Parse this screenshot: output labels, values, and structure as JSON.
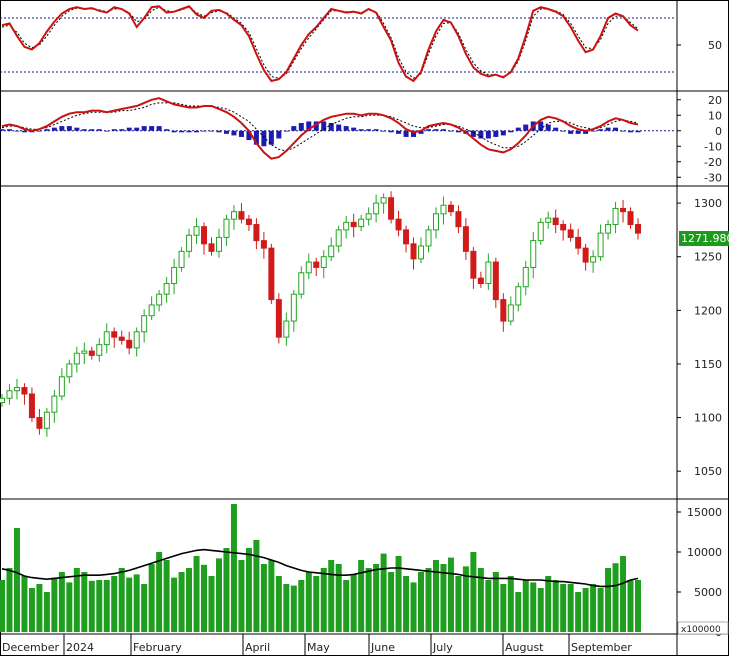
{
  "chart_data": [
    {
      "panel": "stochastic",
      "type": "line",
      "ylim": [
        0,
        100
      ],
      "yticks": [
        50
      ],
      "reference_lines": [
        80,
        20
      ],
      "series": [
        {
          "style": "solid-red",
          "values": [
            72,
            74,
            60,
            48,
            45,
            52,
            65,
            76,
            85,
            90,
            92,
            90,
            91,
            88,
            86,
            92,
            90,
            85,
            70,
            80,
            92,
            93,
            86,
            87,
            90,
            93,
            84,
            80,
            88,
            89,
            85,
            78,
            72,
            60,
            40,
            22,
            10,
            12,
            20,
            35,
            50,
            62,
            70,
            80,
            90,
            88,
            86,
            87,
            85,
            90,
            86,
            70,
            55,
            30,
            15,
            10,
            20,
            45,
            65,
            78,
            75,
            60,
            40,
            25,
            18,
            15,
            17,
            14,
            20,
            35,
            60,
            88,
            92,
            90,
            87,
            82,
            70,
            55,
            42,
            45,
            60,
            80,
            85,
            82,
            72,
            66
          ]
        },
        {
          "style": "dashed-black",
          "values": [
            70,
            72,
            64,
            52,
            47,
            50,
            60,
            72,
            82,
            88,
            91,
            90,
            90,
            89,
            87,
            90,
            90,
            86,
            76,
            78,
            88,
            92,
            88,
            87,
            89,
            92,
            86,
            82,
            86,
            88,
            86,
            80,
            74,
            64,
            46,
            28,
            15,
            13,
            18,
            32,
            46,
            58,
            68,
            78,
            88,
            88,
            87,
            87,
            86,
            89,
            87,
            74,
            58,
            36,
            20,
            13,
            18,
            40,
            60,
            74,
            75,
            63,
            45,
            30,
            21,
            17,
            17,
            15,
            19,
            32,
            55,
            82,
            90,
            90,
            88,
            84,
            74,
            60,
            47,
            46,
            56,
            74,
            82,
            82,
            75,
            68
          ]
        }
      ]
    },
    {
      "panel": "macd",
      "type": "line",
      "ylim": [
        -35,
        25
      ],
      "yticks": [
        20,
        10,
        0,
        -10,
        -20,
        -30
      ],
      "series": [
        {
          "style": "solid-red",
          "values": [
            3,
            4,
            3,
            1,
            0,
            1,
            3,
            6,
            9,
            11,
            12,
            12,
            13,
            13,
            12,
            13,
            14,
            15,
            16,
            18,
            20,
            21,
            19,
            17,
            16,
            15,
            15,
            16,
            16,
            14,
            12,
            9,
            5,
            0,
            -8,
            -14,
            -18,
            -17,
            -13,
            -8,
            -3,
            1,
            4,
            7,
            9,
            10,
            11,
            11,
            10,
            11,
            11,
            10,
            8,
            5,
            1,
            -1,
            0,
            3,
            4,
            5,
            4,
            2,
            -1,
            -5,
            -9,
            -12,
            -13,
            -14,
            -12,
            -8,
            -3,
            3,
            7,
            9,
            8,
            6,
            3,
            1,
            0,
            1,
            3,
            6,
            8,
            7,
            5,
            4
          ]
        },
        {
          "style": "dashed-black",
          "values": [
            2,
            3,
            3,
            2,
            1,
            1,
            2,
            4,
            6,
            8,
            10,
            11,
            12,
            12,
            12,
            12,
            13,
            13,
            14,
            15,
            17,
            18,
            18,
            18,
            17,
            16,
            16,
            16,
            16,
            15,
            14,
            12,
            9,
            6,
            1,
            -4,
            -9,
            -12,
            -13,
            -11,
            -8,
            -5,
            -2,
            1,
            4,
            6,
            8,
            9,
            9,
            10,
            10,
            10,
            9,
            7,
            5,
            3,
            2,
            2,
            3,
            4,
            4,
            3,
            1,
            -1,
            -4,
            -7,
            -9,
            -11,
            -11,
            -10,
            -7,
            -3,
            1,
            5,
            6,
            6,
            5,
            3,
            2,
            1,
            2,
            4,
            6,
            7,
            6,
            5
          ]
        },
        {
          "style": "histogram-blue",
          "values": [
            1,
            1,
            0,
            -1,
            -1,
            0,
            1,
            2,
            3,
            3,
            2,
            1,
            1,
            1,
            0,
            1,
            1,
            2,
            2,
            3,
            3,
            3,
            1,
            -1,
            -1,
            -1,
            -1,
            0,
            0,
            -1,
            -2,
            -3,
            -4,
            -6,
            -9,
            -10,
            -9,
            -5,
            0,
            3,
            5,
            6,
            6,
            6,
            5,
            4,
            3,
            2,
            1,
            1,
            1,
            0,
            -1,
            -2,
            -4,
            -4,
            -2,
            1,
            1,
            1,
            0,
            -1,
            -2,
            -4,
            -5,
            -5,
            -4,
            -3,
            -1,
            2,
            4,
            6,
            6,
            4,
            2,
            0,
            -2,
            -2,
            -2,
            0,
            1,
            2,
            2,
            0,
            -1,
            -1
          ]
        }
      ]
    },
    {
      "panel": "price",
      "type": "candlestick",
      "ylim": [
        1025,
        1315
      ],
      "yticks": [
        1300,
        1250,
        1200,
        1150,
        1100,
        1050
      ],
      "last_value_label": "1271.980",
      "close": [
        1118,
        1125,
        1128,
        1122,
        1100,
        1090,
        1105,
        1120,
        1138,
        1150,
        1160,
        1162,
        1158,
        1168,
        1180,
        1175,
        1172,
        1165,
        1180,
        1195,
        1205,
        1215,
        1225,
        1240,
        1255,
        1270,
        1278,
        1262,
        1255,
        1268,
        1285,
        1292,
        1285,
        1280,
        1265,
        1258,
        1210,
        1175,
        1190,
        1215,
        1235,
        1245,
        1240,
        1250,
        1260,
        1275,
        1282,
        1278,
        1285,
        1290,
        1300,
        1305,
        1285,
        1275,
        1262,
        1248,
        1260,
        1275,
        1290,
        1298,
        1292,
        1278,
        1255,
        1230,
        1225,
        1245,
        1210,
        1190,
        1205,
        1222,
        1240,
        1265,
        1282,
        1286,
        1280,
        1275,
        1268,
        1258,
        1245,
        1250,
        1272,
        1280,
        1295,
        1292,
        1280,
        1272
      ]
    },
    {
      "panel": "volume",
      "type": "bar",
      "ylim": [
        0,
        16500
      ],
      "yticks": [
        15000,
        10000,
        5000,
        0
      ],
      "multiplier_label": "x100000",
      "values": [
        6500,
        8000,
        13000,
        7000,
        5500,
        6000,
        5000,
        6800,
        7500,
        6200,
        8000,
        7500,
        6400,
        6500,
        6500,
        7000,
        8000,
        6800,
        7200,
        6000,
        8500,
        10000,
        9000,
        6800,
        7500,
        8000,
        9500,
        8400,
        7000,
        9200,
        10500,
        16000,
        9000,
        10500,
        11500,
        8500,
        9000,
        7000,
        6000,
        5800,
        6500,
        7500,
        7000,
        8000,
        9000,
        8500,
        6500,
        7200,
        9000,
        8000,
        8500,
        9800,
        7500,
        9500,
        7000,
        6200,
        7500,
        8000,
        9000,
        8500,
        9300,
        7000,
        8200,
        10000,
        8000,
        6500,
        7500,
        6000,
        7000,
        5000,
        6500,
        6200,
        5500,
        7000,
        6500,
        6000,
        6000,
        5000,
        5500,
        6000,
        5500,
        8000,
        8600,
        9500,
        6500,
        6500
      ],
      "ma_values": [
        7900,
        7700,
        7400,
        7000,
        6800,
        6700,
        6600,
        6700,
        6800,
        6900,
        7000,
        7100,
        7100,
        7100,
        7200,
        7300,
        7500,
        7700,
        8000,
        8300,
        8600,
        8900,
        9200,
        9500,
        9800,
        10000,
        10200,
        10300,
        10200,
        10100,
        10000,
        9900,
        9800,
        9700,
        9500,
        9300,
        9000,
        8700,
        8300,
        8000,
        7700,
        7500,
        7400,
        7300,
        7200,
        7100,
        7100,
        7200,
        7400,
        7600,
        7800,
        7900,
        8000,
        8000,
        7900,
        7800,
        7700,
        7600,
        7500,
        7400,
        7300,
        7200,
        7000,
        6900,
        6800,
        6700,
        6700,
        6700,
        6700,
        6600,
        6500,
        6500,
        6500,
        6400,
        6300,
        6300,
        6200,
        6100,
        6000,
        5800,
        5700,
        5700,
        5800,
        6100,
        6500,
        6700
      ]
    }
  ],
  "x_axis": {
    "labels": [
      "December",
      "2024",
      "February",
      "April",
      "May",
      "June",
      "July",
      "August",
      "September"
    ]
  }
}
